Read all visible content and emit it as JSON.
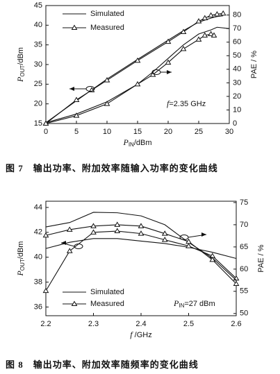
{
  "chart_data": [
    {
      "type": "line",
      "xlabel": {
        "symbol": "P",
        "subscript": "IN",
        "unit": "/dBm"
      },
      "ylabel": {
        "symbol": "P",
        "subscript": "OUT",
        "unit": "/dBm"
      },
      "y2label": "PAE / %",
      "annotation": {
        "symbol": "f",
        "text": "=2.35 GHz"
      },
      "caption": "图 7　输出功率、附加效率随输入功率的变化曲线",
      "xlim": [
        0,
        30
      ],
      "xticks": [
        0,
        5,
        10,
        15,
        20,
        25,
        30
      ],
      "ylim": [
        15,
        45
      ],
      "yticks": [
        15,
        20,
        25,
        30,
        35,
        40,
        45
      ],
      "y2lim": [
        0,
        87
      ],
      "y2ticks": [
        0,
        10,
        20,
        30,
        40,
        50,
        60,
        70,
        80
      ],
      "series": [
        {
          "name": "Simulated",
          "color": "#111111",
          "marker": "none",
          "x": [
            0,
            5,
            10,
            15,
            20,
            22.5,
            25,
            27,
            28,
            29
          ],
          "values": [
            15.2,
            20.8,
            26.3,
            31.3,
            36.2,
            38.6,
            40.8,
            41.8,
            42.2,
            42.4
          ]
        },
        {
          "name": "Measured",
          "color": "#111111",
          "marker": "triangle",
          "x": [
            0,
            5,
            7.5,
            10,
            15,
            20,
            22.5,
            25,
            26,
            27,
            28,
            29
          ],
          "values": [
            15,
            21,
            23.5,
            26,
            31,
            35.8,
            38.3,
            41,
            41.8,
            42.5,
            42.8,
            43
          ]
        },
        {
          "name": "Simulated",
          "color": "#111111",
          "marker": "none",
          "axis": "y2",
          "x": [
            0,
            5,
            10,
            15,
            17.5,
            20,
            22.5,
            25,
            27,
            28,
            30
          ],
          "values": [
            0.6,
            7,
            16,
            29,
            38,
            48,
            58,
            66,
            69,
            71,
            70
          ]
        },
        {
          "name": "Measured",
          "color": "#111111",
          "marker": "triangle",
          "axis": "y2",
          "x": [
            0,
            5,
            10,
            15,
            17.5,
            20,
            22.5,
            25,
            26,
            27,
            27.5
          ],
          "values": [
            0,
            5.8,
            14.5,
            29,
            36,
            45,
            55,
            62,
            65,
            66,
            65
          ]
        }
      ]
    },
    {
      "type": "line",
      "xlabel": {
        "symbol": "f",
        "subscript": "",
        "unit": " /GHz"
      },
      "ylabel": {
        "symbol": "P",
        "subscript": "OUT",
        "unit": "/dBm"
      },
      "y2label": "PAE / %",
      "annotation": {
        "symbol": "P",
        "subscript": "IN",
        "text": "=27 dBm"
      },
      "caption": "图 8　输出功率、附加效率随频率的变化曲线",
      "xlim": [
        2.2,
        2.6
      ],
      "xticks": [
        2.2,
        2.3,
        2.4,
        2.5,
        2.6
      ],
      "ylim": [
        35.3,
        44.5
      ],
      "yticks": [
        36,
        38,
        40,
        42,
        44
      ],
      "y2lim": [
        49.5,
        75.3
      ],
      "y2ticks": [
        50,
        55,
        60,
        65,
        70,
        75
      ],
      "series": [
        {
          "name": "Simulated",
          "color": "#111111",
          "marker": "none",
          "x": [
            2.2,
            2.25,
            2.3,
            2.35,
            2.4,
            2.45,
            2.5,
            2.55,
            2.6
          ],
          "values": [
            40.7,
            41.2,
            41.5,
            41.5,
            41.3,
            41.1,
            40.8,
            40.4,
            39.9
          ]
        },
        {
          "name": "Measured",
          "color": "#111111",
          "marker": "triangle",
          "x": [
            2.2,
            2.25,
            2.3,
            2.35,
            2.4,
            2.45,
            2.5,
            2.55,
            2.6
          ],
          "values": [
            37.3,
            40.5,
            42.0,
            42.1,
            41.9,
            41.4,
            40.9,
            40.1,
            38.3
          ]
        },
        {
          "name": "Simulated",
          "color": "#111111",
          "marker": "none",
          "axis": "y2",
          "x": [
            2.2,
            2.25,
            2.3,
            2.35,
            2.4,
            2.45,
            2.5,
            2.55,
            2.6
          ],
          "values": [
            69.5,
            70.5,
            72.8,
            72.7,
            72,
            70,
            66,
            62.5,
            57.5
          ]
        },
        {
          "name": "Measured",
          "color": "#111111",
          "marker": "triangle",
          "axis": "y2",
          "x": [
            2.2,
            2.25,
            2.3,
            2.35,
            2.4,
            2.45,
            2.5,
            2.55,
            2.6
          ],
          "values": [
            67.6,
            68.9,
            69.7,
            70,
            69.7,
            68,
            66.2,
            62.1,
            56.7
          ]
        }
      ]
    }
  ]
}
